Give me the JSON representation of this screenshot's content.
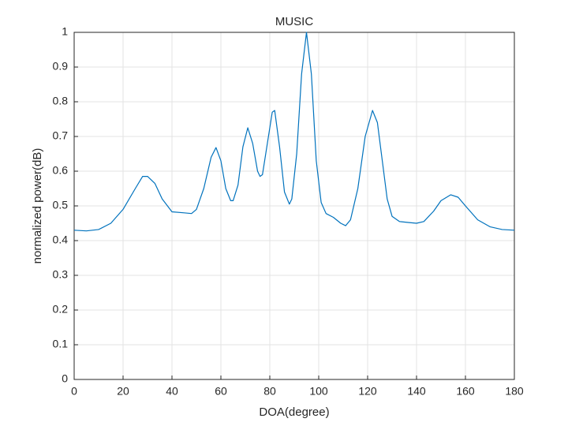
{
  "chart_data": {
    "type": "line",
    "title": "MUSIC",
    "x_label": "DOA(degree)",
    "y_label": "normalized power(dB)",
    "x": [
      0,
      5,
      10,
      15,
      20,
      25,
      28,
      30,
      33,
      36,
      40,
      45,
      48,
      50,
      53,
      56,
      58,
      60,
      62,
      64,
      65,
      67,
      69,
      71,
      73,
      75,
      76,
      77,
      79,
      81,
      82,
      84,
      86,
      88,
      89,
      91,
      93,
      95,
      97,
      99,
      101,
      103,
      106,
      109,
      111,
      113,
      116,
      119,
      122,
      124,
      126,
      128,
      130,
      133,
      137,
      140,
      143,
      147,
      150,
      154,
      157,
      160,
      165,
      170,
      175,
      180
    ],
    "values": [
      0.43,
      0.428,
      0.432,
      0.45,
      0.49,
      0.55,
      0.585,
      0.585,
      0.565,
      0.52,
      0.483,
      0.48,
      0.478,
      0.49,
      0.55,
      0.64,
      0.668,
      0.63,
      0.55,
      0.515,
      0.515,
      0.56,
      0.67,
      0.725,
      0.68,
      0.6,
      0.585,
      0.59,
      0.68,
      0.77,
      0.775,
      0.67,
      0.54,
      0.505,
      0.52,
      0.65,
      0.88,
      1.0,
      0.88,
      0.63,
      0.51,
      0.478,
      0.467,
      0.45,
      0.443,
      0.46,
      0.55,
      0.7,
      0.775,
      0.74,
      0.63,
      0.52,
      0.47,
      0.455,
      0.452,
      0.45,
      0.455,
      0.485,
      0.515,
      0.532,
      0.525,
      0.5,
      0.46,
      0.44,
      0.432,
      0.43
    ],
    "color": "#0072bd",
    "xlim": [
      0,
      180
    ],
    "xticks": [
      0,
      20,
      40,
      60,
      80,
      100,
      120,
      140,
      160,
      180
    ],
    "ylim": [
      0,
      1
    ],
    "yticks": [
      0,
      0.1,
      0.2,
      0.3,
      0.4,
      0.5,
      0.6,
      0.7,
      0.8,
      0.9,
      1
    ],
    "grid": true
  }
}
